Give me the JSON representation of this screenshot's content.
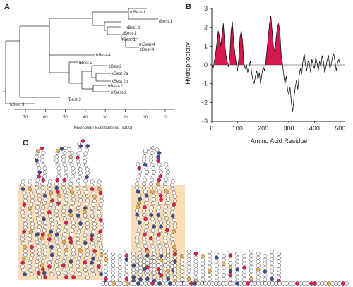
{
  "figure": {
    "panels": {
      "a": "A",
      "b": "B",
      "c": "C"
    }
  },
  "tree": {
    "leaves": [
      {
        "name": "mBest-1"
      },
      {
        "name": "rBest-1"
      },
      {
        "name": "hBest-1"
      },
      {
        "name": "zBest-1"
      },
      {
        "name": "fBest-1"
      },
      {
        "name": "mBest-4"
      },
      {
        "name": "zBest-4"
      },
      {
        "name": "hBest-4"
      },
      {
        "name": "fBest-2"
      },
      {
        "name": "zBest2"
      },
      {
        "name": "xBest 2a"
      },
      {
        "name": "xBest 2b"
      },
      {
        "name": "hBest-2"
      },
      {
        "name": "mBest-2"
      },
      {
        "name": "fBest 3"
      },
      {
        "name": "hBest 3"
      }
    ],
    "axis": {
      "ticks": [
        "70",
        "60",
        "50",
        "40",
        "30",
        "20",
        "10",
        "0"
      ],
      "label": "Nucleotide Substitutions (x100)"
    }
  },
  "chart_data": {
    "type": "line",
    "xlabel": "Amino Acid Residue",
    "ylabel": "Hydrophobicity",
    "xlim": [
      0,
      520
    ],
    "ylim": [
      -3,
      3
    ],
    "xticks": [
      0,
      100,
      200,
      300,
      400,
      500
    ],
    "yticks": [
      3,
      2,
      1,
      0,
      -1,
      -2,
      -3
    ],
    "series": [
      {
        "x": [
          0,
          5,
          10,
          15,
          20,
          25,
          30,
          35,
          40,
          45,
          50,
          55,
          60,
          65,
          70,
          75,
          80,
          85,
          90,
          95,
          100,
          105,
          110,
          115,
          120,
          125,
          130,
          135,
          140,
          145,
          150,
          155,
          160,
          165,
          170,
          175,
          180,
          185,
          190,
          195,
          200,
          205,
          210,
          215,
          220,
          225,
          230,
          235,
          240,
          245,
          250,
          255,
          260,
          265,
          270,
          275,
          280,
          285,
          290,
          295,
          300,
          305,
          310,
          315,
          320,
          325,
          330,
          335,
          340,
          345,
          350,
          355,
          360,
          365,
          370,
          375,
          380,
          385,
          390,
          395,
          400,
          405,
          410,
          415,
          420,
          425,
          430,
          435,
          440,
          445,
          450,
          455,
          460,
          465,
          470,
          475,
          480,
          485,
          490,
          495,
          500
        ],
        "y": [
          0.0,
          -0.2,
          0.2,
          0.6,
          1.2,
          1.8,
          1.5,
          1.0,
          1.6,
          2.2,
          1.2,
          0.5,
          0.2,
          -0.1,
          0.4,
          1.8,
          2.3,
          1.3,
          0.6,
          0.1,
          -0.3,
          0.3,
          1.5,
          1.8,
          1.2,
          0.1,
          -0.2,
          0.0,
          -0.4,
          -0.1,
          0.2,
          -0.4,
          -0.8,
          -1.0,
          -0.6,
          -0.3,
          -0.8,
          -0.4,
          -1.0,
          -0.5,
          -0.1,
          -0.3,
          0.1,
          0.8,
          1.5,
          2.2,
          2.6,
          1.8,
          1.0,
          0.7,
          1.3,
          2.0,
          2.2,
          1.8,
          0.6,
          0.1,
          -0.5,
          -1.0,
          -0.6,
          -1.3,
          -1.6,
          -1.2,
          -2.0,
          -2.5,
          -1.8,
          -1.2,
          -0.8,
          -1.3,
          -0.6,
          -0.2,
          -0.5,
          0.2,
          0.6,
          0.0,
          -0.3,
          0.2,
          0.1,
          -0.4,
          0.3,
          0.0,
          -0.2,
          0.4,
          0.1,
          -0.3,
          0.2,
          -0.1,
          0.5,
          0.2,
          -0.4,
          -0.1,
          0.3,
          0.5,
          -0.2,
          0.0,
          0.4,
          0.6,
          0.2,
          -0.3,
          0.1,
          0.3,
          0.0
        ]
      }
    ],
    "highlight_color": "#d6184e"
  },
  "topology": {
    "colors": {
      "membrane": "#f8ddb6",
      "red": "#e8184e",
      "blue": "#3a4a9a",
      "orange": "#f2b05a",
      "white": "#ffffff"
    }
  }
}
